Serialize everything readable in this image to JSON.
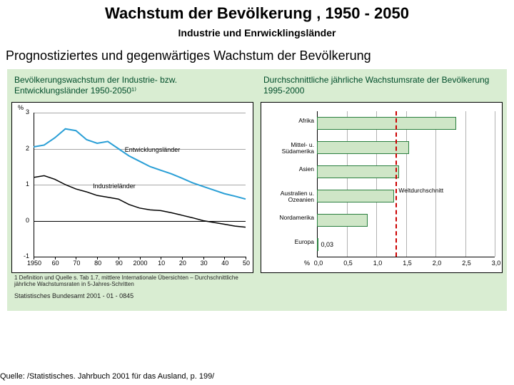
{
  "header": {
    "title": "Wachstum der Bevölkerung , 1950 - 2050",
    "subtitle": "Industrie und Enrwicklingsländer",
    "heading2": "Prognostiziertes und gegenwärtiges Wachstum der Bevölkerung"
  },
  "panel_background": "#d9edd2",
  "left_chart": {
    "type": "line",
    "title": "Bevölkerungswachstum der Industrie- bzw. Entwicklungsländer 1950-2050¹⁾",
    "y_axis_label": "%",
    "y_ticks": [
      -1,
      0,
      1,
      2,
      3
    ],
    "x_ticks": [
      "1950",
      "60",
      "70",
      "80",
      "90",
      "2000",
      "10",
      "20",
      "30",
      "40",
      "50"
    ],
    "xlim": [
      1950,
      2050
    ],
    "ylim": [
      -1,
      3
    ],
    "grid_color": "#000000",
    "background_color": "#ffffff",
    "series": [
      {
        "name": "Entwicklungsländer",
        "label": "Entwicklungsländer",
        "color": "#2a9fd6",
        "line_width": 2,
        "points": [
          [
            1950,
            2.05
          ],
          [
            1955,
            2.1
          ],
          [
            1960,
            2.3
          ],
          [
            1965,
            2.55
          ],
          [
            1970,
            2.5
          ],
          [
            1975,
            2.25
          ],
          [
            1980,
            2.15
          ],
          [
            1985,
            2.2
          ],
          [
            1990,
            2.0
          ],
          [
            1995,
            1.8
          ],
          [
            2000,
            1.65
          ],
          [
            2005,
            1.5
          ],
          [
            2010,
            1.4
          ],
          [
            2015,
            1.3
          ],
          [
            2020,
            1.18
          ],
          [
            2025,
            1.05
          ],
          [
            2030,
            0.95
          ],
          [
            2035,
            0.85
          ],
          [
            2040,
            0.75
          ],
          [
            2045,
            0.68
          ],
          [
            2050,
            0.6
          ]
        ]
      },
      {
        "name": "Industrieländer",
        "label": "Industrieländer",
        "color": "#000000",
        "line_width": 1.5,
        "points": [
          [
            1950,
            1.2
          ],
          [
            1955,
            1.25
          ],
          [
            1960,
            1.15
          ],
          [
            1965,
            1.0
          ],
          [
            1970,
            0.88
          ],
          [
            1975,
            0.8
          ],
          [
            1980,
            0.7
          ],
          [
            1985,
            0.65
          ],
          [
            1990,
            0.6
          ],
          [
            1995,
            0.45
          ],
          [
            2000,
            0.35
          ],
          [
            2005,
            0.3
          ],
          [
            2010,
            0.28
          ],
          [
            2015,
            0.22
          ],
          [
            2020,
            0.15
          ],
          [
            2025,
            0.08
          ],
          [
            2030,
            0.0
          ],
          [
            2035,
            -0.05
          ],
          [
            2040,
            -0.1
          ],
          [
            2045,
            -0.15
          ],
          [
            2050,
            -0.18
          ]
        ]
      }
    ],
    "footnote": "1 Definition und Quelle s. Tab 1.7, mittlere Internationale Übersichten – Durchschnittliche jährliche Wachstumsraten in 5-Jahres-Schritten"
  },
  "right_chart": {
    "type": "bar",
    "title": "Durchschnittliche jährliche Wachstumsrate der Bevölkerung 1995-2000",
    "x_axis_label": "%",
    "x_ticks": [
      "0,0",
      "0,5",
      "1,0",
      "1,5",
      "2,0",
      "2,5",
      "3,0"
    ],
    "xlim": [
      0,
      3.0
    ],
    "background_color": "#ffffff",
    "bar_fill": "#cfe6c7",
    "bar_border": "#2a7f3f",
    "world_avg": {
      "value": 1.33,
      "label": "Weltdurchschnitt",
      "color": "#cc0000"
    },
    "categories": [
      {
        "label": "Afrika",
        "value": 2.35
      },
      {
        "label": "Mittel- u. Südamerika",
        "value": 1.55
      },
      {
        "label": "Asien",
        "value": 1.38
      },
      {
        "label": "Australien u. Ozeanien",
        "value": 1.3
      },
      {
        "label": "Nordamerika",
        "value": 0.85
      },
      {
        "label": "Europa",
        "value": 0.03,
        "value_label": "0,03"
      }
    ]
  },
  "source_line": "Statistisches Bundesamt 2001 - 01 - 0845",
  "citation": "Quelle: /Statistisches. Jahrbuch 2001 für das Ausland, p. 199/"
}
